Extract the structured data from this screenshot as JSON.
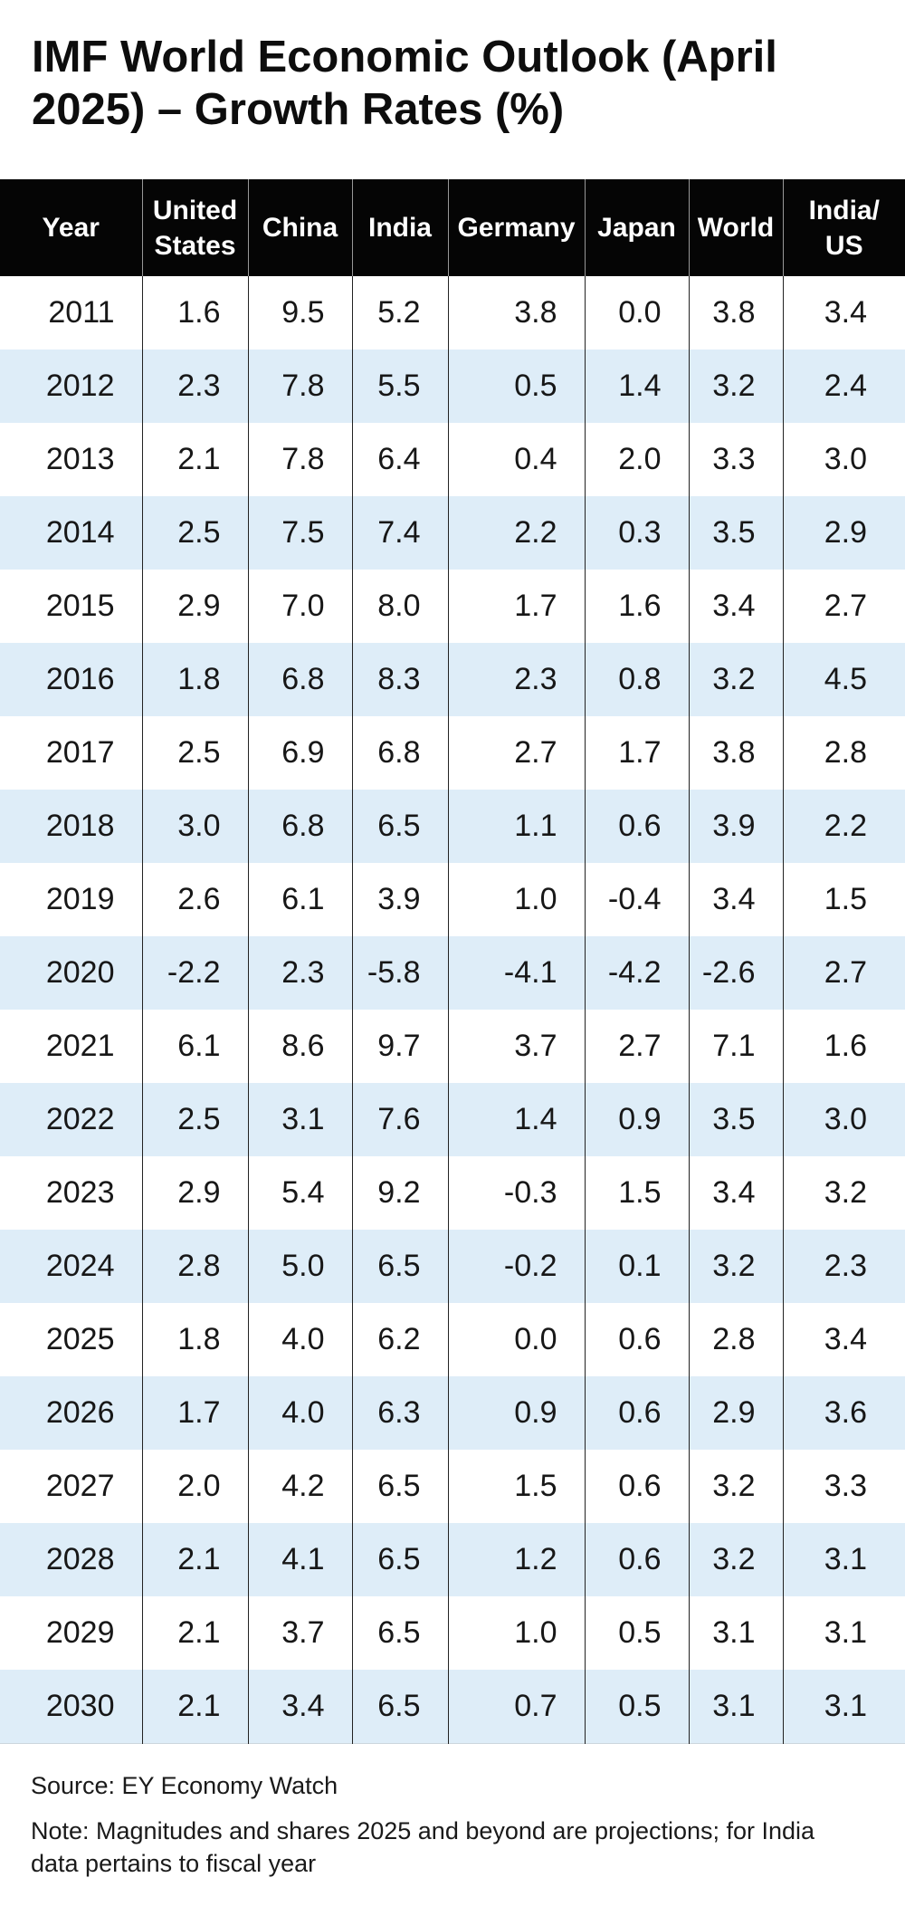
{
  "title": "IMF World Economic Outlook (April 2025) – Growth Rates (%)",
  "table": {
    "headers_display": [
      "Year",
      "United\nStates",
      "China",
      "India",
      "Germany",
      "Japan",
      "World",
      "India/\nUS"
    ]
  },
  "chart_data": {
    "type": "table",
    "title": "IMF World Economic Outlook (April 2025) – Growth Rates (%)",
    "unit": "%",
    "columns": [
      "Year",
      "United States",
      "China",
      "India",
      "Germany",
      "Japan",
      "World",
      "India/US"
    ],
    "rows": [
      [
        "2011",
        "1.6",
        "9.5",
        "5.2",
        "3.8",
        "0.0",
        "3.8",
        "3.4"
      ],
      [
        "2012",
        "2.3",
        "7.8",
        "5.5",
        "0.5",
        "1.4",
        "3.2",
        "2.4"
      ],
      [
        "2013",
        "2.1",
        "7.8",
        "6.4",
        "0.4",
        "2.0",
        "3.3",
        "3.0"
      ],
      [
        "2014",
        "2.5",
        "7.5",
        "7.4",
        "2.2",
        "0.3",
        "3.5",
        "2.9"
      ],
      [
        "2015",
        "2.9",
        "7.0",
        "8.0",
        "1.7",
        "1.6",
        "3.4",
        "2.7"
      ],
      [
        "2016",
        "1.8",
        "6.8",
        "8.3",
        "2.3",
        "0.8",
        "3.2",
        "4.5"
      ],
      [
        "2017",
        "2.5",
        "6.9",
        "6.8",
        "2.7",
        "1.7",
        "3.8",
        "2.8"
      ],
      [
        "2018",
        "3.0",
        "6.8",
        "6.5",
        "1.1",
        "0.6",
        "3.9",
        "2.2"
      ],
      [
        "2019",
        "2.6",
        "6.1",
        "3.9",
        "1.0",
        "-0.4",
        "3.4",
        "1.5"
      ],
      [
        "2020",
        "-2.2",
        "2.3",
        "-5.8",
        "-4.1",
        "-4.2",
        "-2.6",
        "2.7"
      ],
      [
        "2021",
        "6.1",
        "8.6",
        "9.7",
        "3.7",
        "2.7",
        "7.1",
        "1.6"
      ],
      [
        "2022",
        "2.5",
        "3.1",
        "7.6",
        "1.4",
        "0.9",
        "3.5",
        "3.0"
      ],
      [
        "2023",
        "2.9",
        "5.4",
        "9.2",
        "-0.3",
        "1.5",
        "3.4",
        "3.2"
      ],
      [
        "2024",
        "2.8",
        "5.0",
        "6.5",
        "-0.2",
        "0.1",
        "3.2",
        "2.3"
      ],
      [
        "2025",
        "1.8",
        "4.0",
        "6.2",
        "0.0",
        "0.6",
        "2.8",
        "3.4"
      ],
      [
        "2026",
        "1.7",
        "4.0",
        "6.3",
        "0.9",
        "0.6",
        "2.9",
        "3.6"
      ],
      [
        "2027",
        "2.0",
        "4.2",
        "6.5",
        "1.5",
        "0.6",
        "3.2",
        "3.3"
      ],
      [
        "2028",
        "2.1",
        "4.1",
        "6.5",
        "1.2",
        "0.6",
        "3.2",
        "3.1"
      ],
      [
        "2029",
        "2.1",
        "3.7",
        "6.5",
        "1.0",
        "0.5",
        "3.1",
        "3.1"
      ],
      [
        "2030",
        "2.1",
        "3.4",
        "6.5",
        "0.7",
        "0.5",
        "3.1",
        "3.1"
      ]
    ]
  },
  "footer": {
    "source": "Source: EY Economy Watch",
    "note": "Note: Magnitudes and shares 2025 and beyond are projections; for India data pertains to fiscal year"
  },
  "colors": {
    "header_bg": "#050505",
    "header_text": "#ffffff",
    "row_stripe": "#deedf8",
    "grid_line_body": "#222222",
    "grid_line_header": "#989898",
    "text": "#171717"
  }
}
